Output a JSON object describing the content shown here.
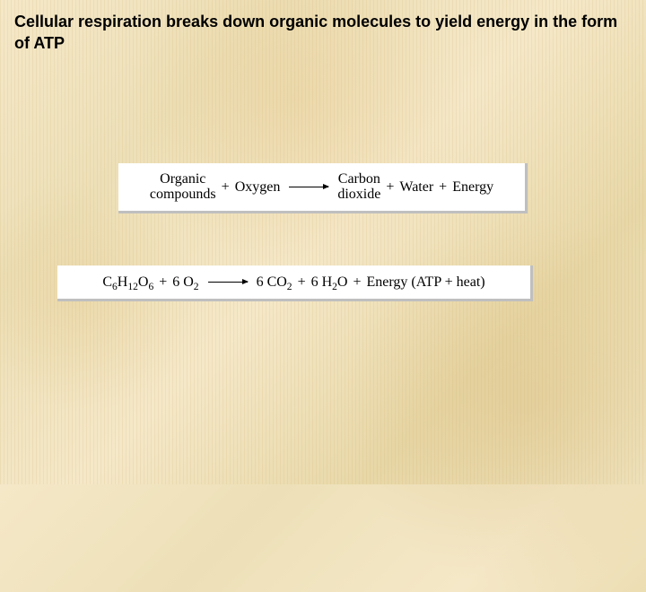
{
  "title": "Cellular respiration breaks down organic molecules to yield energy in the form of ATP",
  "title_fontsize": 18,
  "word_eq": {
    "lhs1_top": "Organic",
    "lhs1_bot": "compounds",
    "plus": "+",
    "lhs2": "Oxygen",
    "rhs1_top": "Carbon",
    "rhs1_bot": "dioxide",
    "rhs2": "Water",
    "rhs3": "Energy",
    "fontsize": 16
  },
  "chem_eq": {
    "glucose": "C₆H₁₂O₆",
    "plus": "+",
    "o2_coef": "6",
    "o2": "O₂",
    "co2_coef": "6",
    "co2": "CO₂",
    "h2o_coef": "6",
    "h2o": "H₂O",
    "energy": "Energy (ATP + heat)",
    "fontsize": 16
  },
  "colors": {
    "text": "#000000",
    "eq_bg": "#ffffff",
    "page_bg_a": "#f5e8c8",
    "page_bg_b": "#e8d8a8"
  }
}
